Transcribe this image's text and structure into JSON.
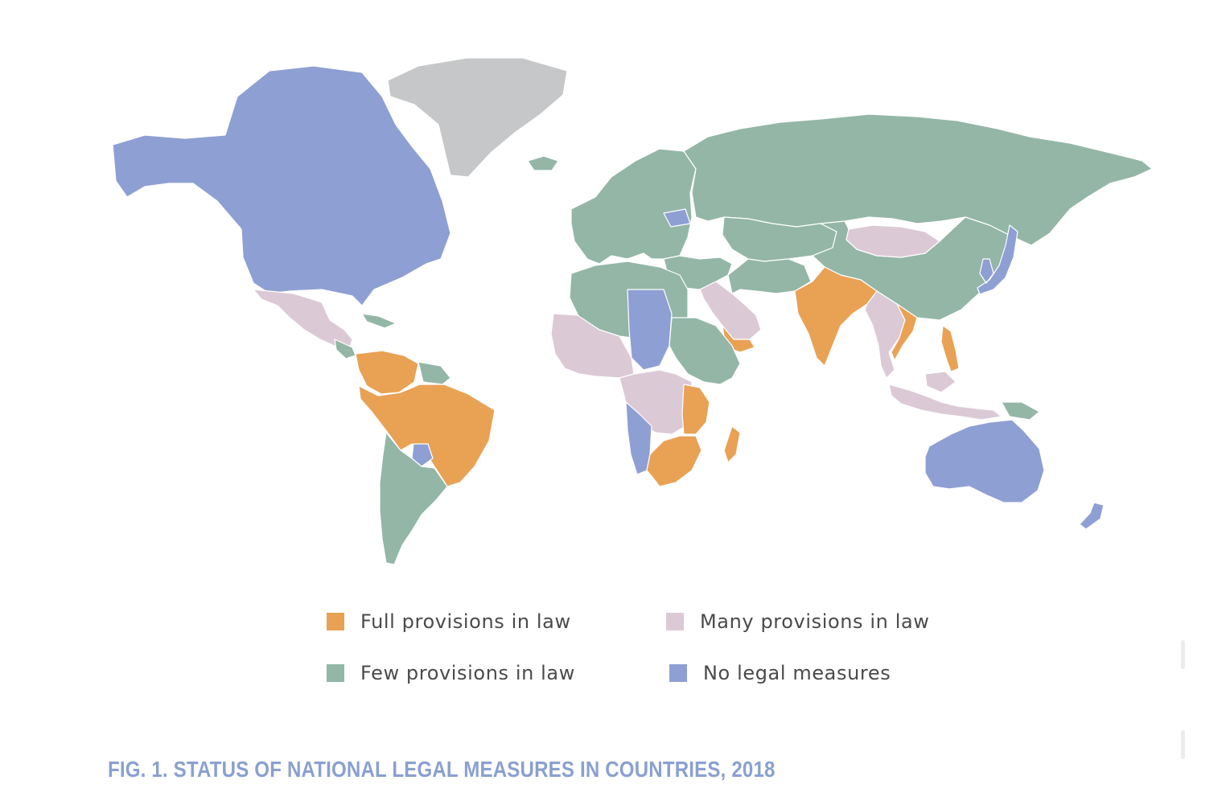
{
  "figure": {
    "caption": "FIG. 1. STATUS OF NATIONAL LEGAL MEASURES IN COUNTRIES, 2018"
  },
  "legend": {
    "full": {
      "label": "Full provisions in law",
      "color": "#E9A154"
    },
    "many": {
      "label": "Many provisions in law",
      "color": "#DCC9D6"
    },
    "few": {
      "label": "Few provisions in law",
      "color": "#93B6A7"
    },
    "none": {
      "label": "No legal measures",
      "color": "#8E9FD3"
    }
  },
  "map": {
    "no_data_color": "#C6C7C8",
    "border_color": "#ffffff",
    "region_status": {
      "north-america": "none",
      "greenland": "no-data",
      "mexico-central-america": "many",
      "caribbean": "few",
      "colombia-venezuela": "full",
      "guianas": "few",
      "brazil-peru-bolivia": "full",
      "paraguay": "none",
      "chile-argentina-uruguay": "few",
      "europe": "few",
      "iceland": "few",
      "belarus": "none",
      "russia": "few",
      "central-asia": "few",
      "china": "few",
      "mongolia": "many",
      "korea-japan": "none",
      "middle-east": "few",
      "arabia": "many",
      "yemen": "full",
      "iran-afghanistan": "few",
      "south-asia": "full",
      "mainland-southeast-asia": "many",
      "vietnam": "full",
      "philippines": "full",
      "indonesia": "many",
      "papua-new-guinea": "few",
      "australia": "none",
      "new-zealand": "none",
      "north-africa": "few",
      "libya-chad": "none",
      "west-africa": "many",
      "sudan-ethiopia": "few",
      "central-africa": "many",
      "angola-namibia": "none",
      "east-africa": "full",
      "southern-africa": "full",
      "madagascar": "full"
    }
  }
}
